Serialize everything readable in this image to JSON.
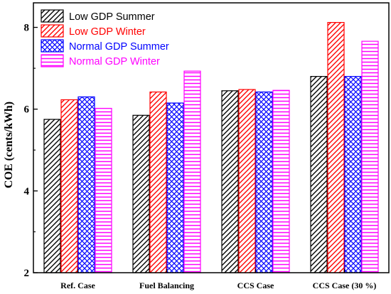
{
  "chart_data": {
    "type": "bar",
    "categories": [
      "Ref. Case",
      "Fuel Balancing",
      "CCS Case",
      "CCS Case (30 %)"
    ],
    "ylabel": "COE (cents/kWh)",
    "xlabel": "",
    "ylim": [
      2,
      8.6
    ],
    "yticks": [
      "2",
      "4",
      "6",
      "8"
    ],
    "legend_position": "top-left",
    "series": [
      {
        "name": "Low GDP Summer",
        "values": [
          5.75,
          5.85,
          6.45,
          6.8
        ],
        "color": "#000000",
        "pattern": "diagonal"
      },
      {
        "name": "Low GDP Winter",
        "values": [
          6.23,
          6.42,
          6.48,
          8.12
        ],
        "color": "#ff0000",
        "pattern": "diagonal"
      },
      {
        "name": "Normal GDP Summer",
        "values": [
          6.3,
          6.15,
          6.42,
          6.8
        ],
        "color": "#0000ff",
        "pattern": "crosshatch"
      },
      {
        "name": "Normal GDP Winter",
        "values": [
          6.02,
          6.93,
          6.46,
          7.66
        ],
        "color": "#ff00ff",
        "pattern": "horizontal"
      }
    ]
  }
}
